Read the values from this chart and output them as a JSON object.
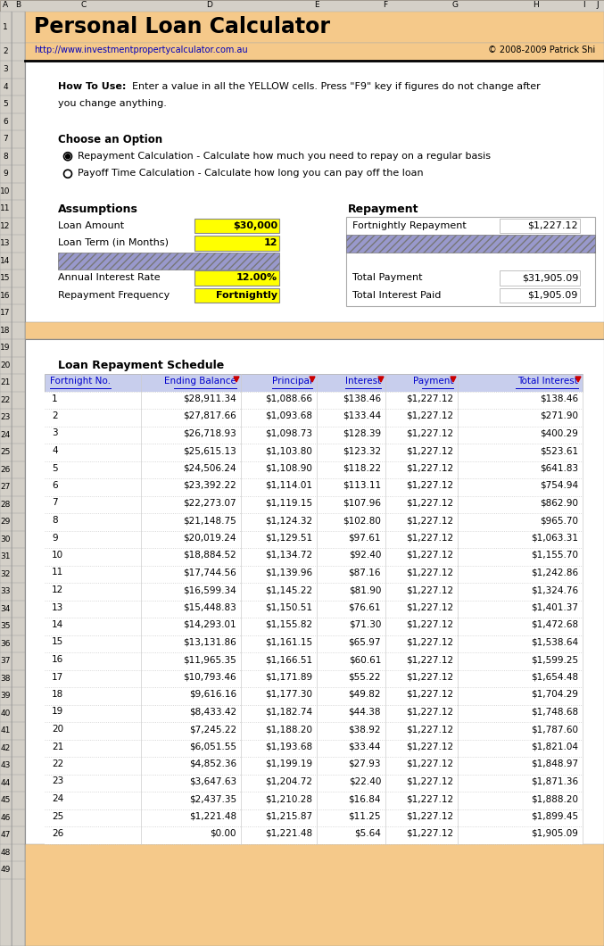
{
  "title": "Personal Loan Calculator",
  "url": "http://www.investmentpropertycalculator.com.au",
  "copyright": "© 2008-2009 Patrick Shi",
  "bg_color": "#F5C98A",
  "white_bg": "#FFFFFF",
  "yellow_cell": "#FFFF00",
  "header_blue": "#C8CEED",
  "hatch_blue": "#9999CC",
  "gray_col": "#D4D0C8",
  "choose_option": "Choose an Option",
  "radio1": "Repayment Calculation - Calculate how much you need to repay on a regular basis",
  "radio2": "Payoff Time Calculation - Calculate how long you can pay off the loan",
  "assumptions_label": "Assumptions",
  "repayment_label": "Repayment",
  "loan_amount_label": "Loan Amount",
  "loan_amount_val": "$30,000",
  "loan_term_label": "Loan Term (in Months)",
  "loan_term_val": "12",
  "annual_rate_label": "Annual Interest Rate",
  "annual_rate_val": "12.00%",
  "freq_label": "Repayment Frequency",
  "freq_val": "Fortnightly",
  "fortnight_repay_label": "Fortnightly Repayment",
  "fortnight_repay_val": "$1,227.12",
  "total_payment_label": "Total Payment",
  "total_payment_val": "$31,905.09",
  "total_interest_label": "Total Interest Paid",
  "total_interest_val": "$1,905.09",
  "schedule_title": "Loan Repayment Schedule",
  "col_headers": [
    "Fortnight No.",
    "Ending Balance",
    "Principal",
    "Interest",
    "Payment",
    "Total Interest"
  ],
  "schedule": [
    [
      1,
      "$28,911.34",
      "$1,088.66",
      "$138.46",
      "$1,227.12",
      "$138.46"
    ],
    [
      2,
      "$27,817.66",
      "$1,093.68",
      "$133.44",
      "$1,227.12",
      "$271.90"
    ],
    [
      3,
      "$26,718.93",
      "$1,098.73",
      "$128.39",
      "$1,227.12",
      "$400.29"
    ],
    [
      4,
      "$25,615.13",
      "$1,103.80",
      "$123.32",
      "$1,227.12",
      "$523.61"
    ],
    [
      5,
      "$24,506.24",
      "$1,108.90",
      "$118.22",
      "$1,227.12",
      "$641.83"
    ],
    [
      6,
      "$23,392.22",
      "$1,114.01",
      "$113.11",
      "$1,227.12",
      "$754.94"
    ],
    [
      7,
      "$22,273.07",
      "$1,119.15",
      "$107.96",
      "$1,227.12",
      "$862.90"
    ],
    [
      8,
      "$21,148.75",
      "$1,124.32",
      "$102.80",
      "$1,227.12",
      "$965.70"
    ],
    [
      9,
      "$20,019.24",
      "$1,129.51",
      "$97.61",
      "$1,227.12",
      "$1,063.31"
    ],
    [
      10,
      "$18,884.52",
      "$1,134.72",
      "$92.40",
      "$1,227.12",
      "$1,155.70"
    ],
    [
      11,
      "$17,744.56",
      "$1,139.96",
      "$87.16",
      "$1,227.12",
      "$1,242.86"
    ],
    [
      12,
      "$16,599.34",
      "$1,145.22",
      "$81.90",
      "$1,227.12",
      "$1,324.76"
    ],
    [
      13,
      "$15,448.83",
      "$1,150.51",
      "$76.61",
      "$1,227.12",
      "$1,401.37"
    ],
    [
      14,
      "$14,293.01",
      "$1,155.82",
      "$71.30",
      "$1,227.12",
      "$1,472.68"
    ],
    [
      15,
      "$13,131.86",
      "$1,161.15",
      "$65.97",
      "$1,227.12",
      "$1,538.64"
    ],
    [
      16,
      "$11,965.35",
      "$1,166.51",
      "$60.61",
      "$1,227.12",
      "$1,599.25"
    ],
    [
      17,
      "$10,793.46",
      "$1,171.89",
      "$55.22",
      "$1,227.12",
      "$1,654.48"
    ],
    [
      18,
      "$9,616.16",
      "$1,177.30",
      "$49.82",
      "$1,227.12",
      "$1,704.29"
    ],
    [
      19,
      "$8,433.42",
      "$1,182.74",
      "$44.38",
      "$1,227.12",
      "$1,748.68"
    ],
    [
      20,
      "$7,245.22",
      "$1,188.20",
      "$38.92",
      "$1,227.12",
      "$1,787.60"
    ],
    [
      21,
      "$6,051.55",
      "$1,193.68",
      "$33.44",
      "$1,227.12",
      "$1,821.04"
    ],
    [
      22,
      "$4,852.36",
      "$1,199.19",
      "$27.93",
      "$1,227.12",
      "$1,848.97"
    ],
    [
      23,
      "$3,647.63",
      "$1,204.72",
      "$22.40",
      "$1,227.12",
      "$1,871.36"
    ],
    [
      24,
      "$2,437.35",
      "$1,210.28",
      "$16.84",
      "$1,227.12",
      "$1,888.20"
    ],
    [
      25,
      "$1,221.48",
      "$1,215.87",
      "$11.25",
      "$1,227.12",
      "$1,899.45"
    ],
    [
      26,
      "$0.00",
      "$1,221.48",
      "$5.64",
      "$1,227.12",
      "$1,905.09"
    ]
  ]
}
